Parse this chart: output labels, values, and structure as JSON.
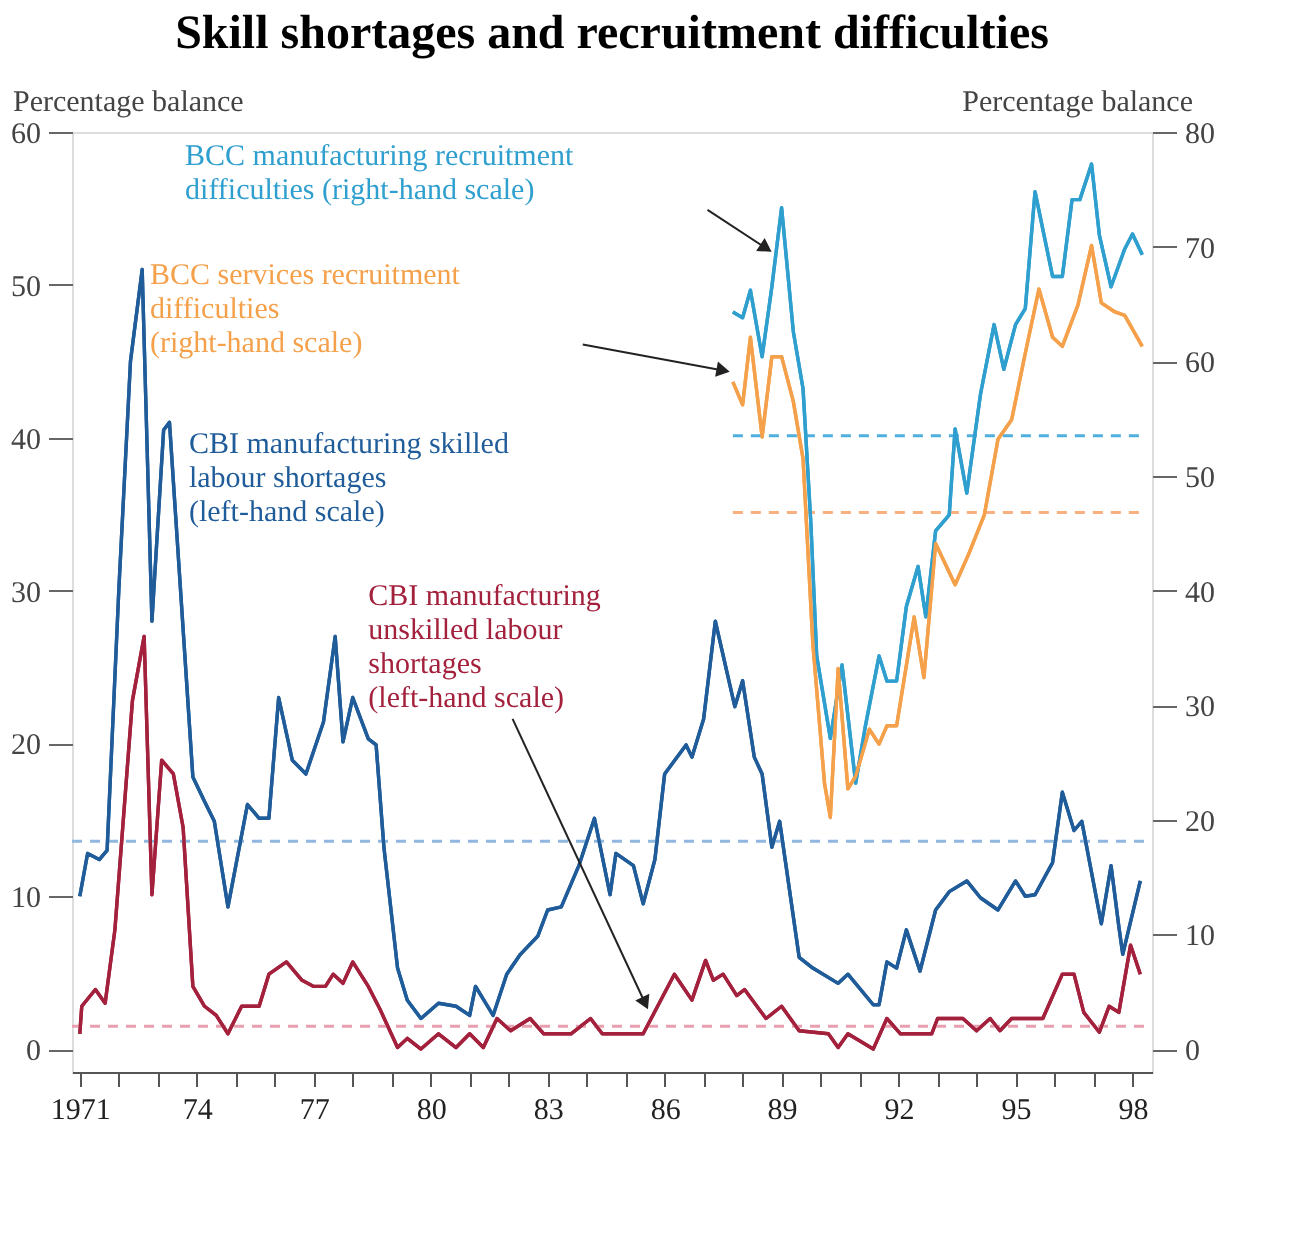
{
  "chart_data": {
    "type": "line",
    "title": "Skill shortages and recruitment difficulties",
    "ylabel": "Percentage balance",
    "y2label": "Percentage balance",
    "xlim": [
      1970.8,
      1998.5
    ],
    "ylim": [
      -1.5,
      60
    ],
    "y2lim": [
      -2,
      80
    ],
    "xticks": [
      1971,
      {
        "value": 1972,
        "label": null
      },
      {
        "value": 1973,
        "label": null
      },
      {
        "value": 1974,
        "label": "74"
      },
      {
        "value": 1975,
        "label": null
      },
      {
        "value": 1976,
        "label": null
      },
      {
        "value": 1977,
        "label": "77"
      },
      {
        "value": 1978,
        "label": null
      },
      {
        "value": 1979,
        "label": null
      },
      {
        "value": 1980,
        "label": "80"
      },
      {
        "value": 1981,
        "label": null
      },
      {
        "value": 1982,
        "label": null
      },
      {
        "value": 1983,
        "label": "83"
      },
      {
        "value": 1984,
        "label": null
      },
      {
        "value": 1985,
        "label": null
      },
      {
        "value": 1986,
        "label": "86"
      },
      {
        "value": 1987,
        "label": null
      },
      {
        "value": 1988,
        "label": null
      },
      {
        "value": 1989,
        "label": "89"
      },
      {
        "value": 1990,
        "label": null
      },
      {
        "value": 1991,
        "label": null
      },
      {
        "value": 1992,
        "label": "92"
      },
      {
        "value": 1993,
        "label": null
      },
      {
        "value": 1994,
        "label": null
      },
      {
        "value": 1995,
        "label": "95"
      },
      {
        "value": 1996,
        "label": null
      },
      {
        "value": 1997,
        "label": null
      },
      {
        "value": 1998,
        "label": "98"
      }
    ],
    "yticks": [
      0,
      10,
      20,
      30,
      40,
      50,
      60
    ],
    "y2ticks": [
      0,
      10,
      20,
      30,
      40,
      50,
      60,
      70,
      80
    ],
    "grid": false,
    "legend": false,
    "series": [
      {
        "name": "CBI manufacturing skilled\nlabour shortages\n(left-hand scale)",
        "color": "#1f5c99",
        "x": [
          1971.0,
          1971.2,
          1971.5,
          1971.7,
          1972.0,
          1972.3,
          1972.6,
          1972.85,
          1973.15,
          1973.3,
          1973.9,
          1974.2,
          1974.45,
          1974.8,
          1975.3,
          1975.6,
          1975.85,
          1976.1,
          1976.45,
          1976.8,
          1977.25,
          1977.55,
          1977.75,
          1978.0,
          1978.4,
          1978.6,
          1978.8,
          1979.15,
          1979.4,
          1979.75,
          1980.2,
          1980.65,
          1981.0,
          1981.15,
          1981.6,
          1981.95,
          1982.3,
          1982.75,
          1983.0,
          1983.35,
          1983.8,
          1984.2,
          1984.6,
          1984.75,
          1985.2,
          1985.45,
          1985.75,
          1986.0,
          1986.55,
          1986.7,
          1987.0,
          1987.3,
          1987.8,
          1988.0,
          1988.3,
          1988.5,
          1988.75,
          1988.95,
          1989.45,
          1989.8,
          1990.45,
          1990.7,
          1991.35,
          1991.5,
          1991.7,
          1991.95,
          1992.2,
          1992.55,
          1992.95,
          1993.3,
          1993.75,
          1994.1,
          1994.55,
          1995.0,
          1995.25,
          1995.5,
          1995.95,
          1996.2,
          1996.5,
          1996.7,
          1997.2,
          1997.45,
          1997.65,
          1997.75,
          1998.2
        ],
        "values": [
          10,
          12.8,
          12.4,
          13,
          30,
          45,
          51,
          28,
          40.5,
          41,
          17.8,
          16.2,
          14.9,
          9.3,
          16,
          15.1,
          15.1,
          23,
          18.9,
          18,
          21.4,
          27,
          20.1,
          23,
          20.3,
          19.9,
          13.2,
          5.3,
          3.2,
          2,
          3,
          2.8,
          2.2,
          4.1,
          2.2,
          4.9,
          6.2,
          7.4,
          9.1,
          9.3,
          12,
          15.1,
          10.1,
          12.8,
          12,
          9.5,
          12.4,
          18,
          19.9,
          19.1,
          21.6,
          28,
          22.4,
          24.1,
          19.1,
          18,
          13.2,
          14.9,
          6,
          5.3,
          4.3,
          4.9,
          2.9,
          2.9,
          5.7,
          5.3,
          7.8,
          5.1,
          9.1,
          10.3,
          11,
          9.9,
          9.1,
          11,
          10,
          10.1,
          12.2,
          16.8,
          14.3,
          14.9,
          8.2,
          12,
          8,
          6.2,
          11
        ]
      },
      {
        "name": "CBI manufacturing\nunskilled labour\nshortages\n(left-hand scale)",
        "color": "#a3213c",
        "x": [
          1971.0,
          1971.05,
          1971.4,
          1971.65,
          1971.9,
          1972.35,
          1972.65,
          1972.85,
          1973.1,
          1973.4,
          1973.65,
          1973.9,
          1974.2,
          1974.5,
          1974.8,
          1975.15,
          1975.6,
          1975.85,
          1976.3,
          1976.7,
          1977.0,
          1977.3,
          1977.5,
          1977.75,
          1978.0,
          1978.4,
          1978.7,
          1979.15,
          1979.4,
          1979.75,
          1980.2,
          1980.65,
          1981.0,
          1981.35,
          1981.7,
          1982.05,
          1982.55,
          1982.9,
          1983.6,
          1984.1,
          1984.4,
          1985.45,
          1986.25,
          1986.7,
          1987.05,
          1987.25,
          1987.5,
          1987.85,
          1988.05,
          1988.6,
          1989.0,
          1989.45,
          1990.2,
          1990.45,
          1990.7,
          1991.35,
          1991.7,
          1992.05,
          1992.85,
          1993.0,
          1993.65,
          1994.0,
          1994.35,
          1994.6,
          1994.9,
          1995.7,
          1996.2,
          1996.5,
          1996.75,
          1997.15,
          1997.4,
          1997.65,
          1997.95,
          1998.2
        ],
        "values": [
          1,
          2.8,
          3.9,
          3,
          7.8,
          22.8,
          27,
          10.1,
          18.9,
          18,
          14.5,
          4.1,
          2.8,
          2.2,
          1,
          2.8,
          2.8,
          4.9,
          5.7,
          4.5,
          4.1,
          4.1,
          4.9,
          4.3,
          5.7,
          4.1,
          2.6,
          0.1,
          0.7,
          0,
          1,
          0.1,
          1,
          0.1,
          2,
          1.2,
          2,
          1,
          1,
          2,
          1,
          1,
          4.9,
          3.2,
          5.8,
          4.5,
          4.9,
          3.5,
          3.9,
          2,
          2.8,
          1.2,
          1,
          0.1,
          1,
          0,
          2,
          1,
          1,
          2,
          2,
          1.2,
          2,
          1.2,
          2,
          2,
          4.9,
          4.9,
          2.4,
          1.1,
          2.8,
          2.4,
          6.8,
          4.9
        ]
      },
      {
        "name": "BCC manufacturing recruitment\ndifficulties        (right-hand scale)",
        "color": "#2e9fce",
        "axis": "y2",
        "x": [
          1987.75,
          1988.0,
          1988.2,
          1988.5,
          1988.75,
          1989.0,
          1989.3,
          1989.55,
          1989.75,
          1989.9,
          1990.25,
          1990.55,
          1990.9,
          1991.15,
          1991.5,
          1991.7,
          1991.95,
          1992.2,
          1992.5,
          1992.7,
          1992.95,
          1993.3,
          1993.45,
          1993.75,
          1994.1,
          1994.45,
          1994.7,
          1995.0,
          1995.25,
          1995.5,
          1995.95,
          1996.2,
          1996.45,
          1996.65,
          1996.95,
          1997.15,
          1997.45,
          1997.8,
          1998.0,
          1998.25
        ],
        "values": [
          64.3,
          63.8,
          66.2,
          60.4,
          66.5,
          73.4,
          62.6,
          57.6,
          45.9,
          34.3,
          27.1,
          33.5,
          23.2,
          28.2,
          34.3,
          32.1,
          32.1,
          38.6,
          42.1,
          37.7,
          45.2,
          46.6,
          54.1,
          48.5,
          57.1,
          63.2,
          59.3,
          63.2,
          64.6,
          74.8,
          67.4,
          67.4,
          74.1,
          74.1,
          77.2,
          71,
          66.5,
          69.8,
          71.1,
          69.3
        ]
      },
      {
        "name": "BCC services recruitment\ndifficulties\n(right-hand scale)",
        "color": "#f5a04a",
        "axis": "y2",
        "x": [
          1987.75,
          1988.0,
          1988.2,
          1988.5,
          1988.75,
          1989.0,
          1989.3,
          1989.55,
          1989.8,
          1990.1,
          1990.25,
          1990.45,
          1990.7,
          1990.9,
          1991.25,
          1991.5,
          1991.7,
          1991.95,
          1992.4,
          1992.65,
          1992.95,
          1993.45,
          1993.8,
          1994.2,
          1994.55,
          1994.9,
          1995.25,
          1995.6,
          1995.95,
          1996.2,
          1996.6,
          1996.95,
          1997.2,
          1997.55,
          1997.8,
          1998.25
        ],
        "values": [
          58.2,
          56.2,
          62.1,
          53.4,
          60.4,
          60.4,
          56.5,
          51.5,
          35.4,
          23.2,
          20.2,
          33.2,
          22.7,
          23.8,
          27.9,
          26.6,
          28.2,
          28.2,
          37.7,
          32.4,
          44.1,
          40.5,
          43.2,
          46.6,
          53.2,
          54.9,
          60.7,
          66.3,
          62.1,
          61.3,
          64.9,
          70.1,
          65.1,
          64.3,
          64,
          61.3
        ]
      }
    ],
    "ref_lines": [
      {
        "axis": "y",
        "value": 13.6,
        "color": "#8fb8e0",
        "line_style": "dashed"
      },
      {
        "axis": "y",
        "value": 1.5,
        "color": "#e8a0b0",
        "line_style": "dashed"
      },
      {
        "axis": "y2",
        "value": 53.5,
        "color": "#4fb0e0",
        "line_style": "dashed"
      },
      {
        "axis": "y2",
        "value": 46.8,
        "color": "#f8b080",
        "line_style": "dashed"
      }
    ]
  }
}
